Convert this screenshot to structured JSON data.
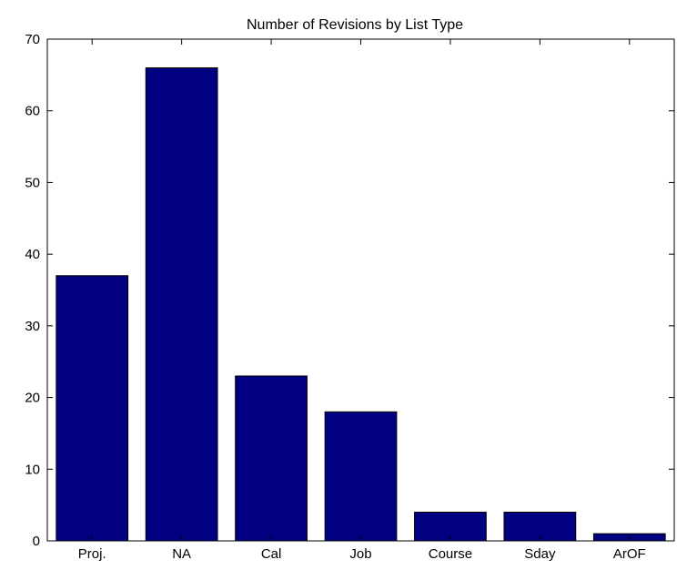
{
  "chart_data": {
    "type": "bar",
    "title": "Number of Revisions by List Type",
    "xlabel": "",
    "ylabel": "",
    "categories": [
      "Proj.",
      "NA",
      "Cal",
      "Job",
      "Course",
      "Sday",
      "ArOF"
    ],
    "values": [
      37,
      66,
      23,
      18,
      4,
      4,
      1
    ],
    "ylim": [
      0,
      70
    ],
    "yticks": [
      0,
      10,
      20,
      30,
      40,
      50,
      60,
      70
    ],
    "grid": false,
    "legend": "none",
    "colors": {
      "bar_fill": "#000080",
      "bar_edge": "#000000",
      "axes": "#000000",
      "background": "#ffffff"
    }
  }
}
